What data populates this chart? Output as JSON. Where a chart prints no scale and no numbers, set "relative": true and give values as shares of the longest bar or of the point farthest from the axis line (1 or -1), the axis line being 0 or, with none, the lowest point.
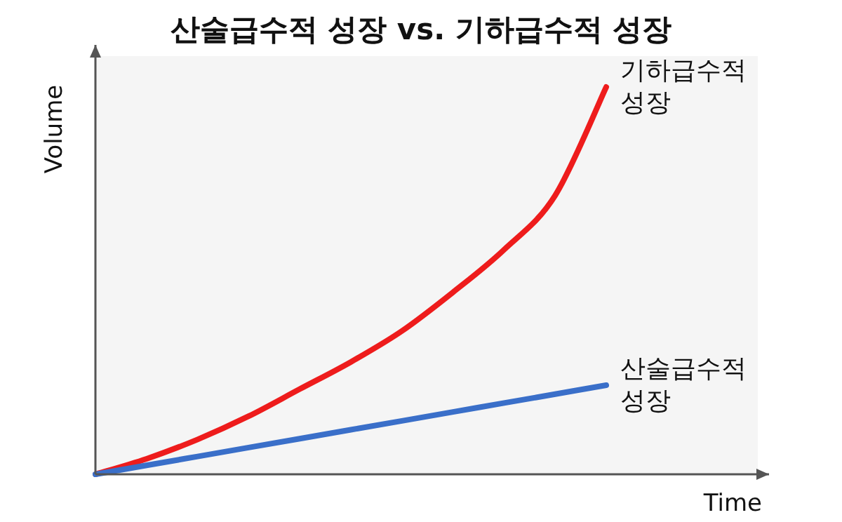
{
  "chart_data": {
    "type": "line",
    "title": "산술급수적 성장 vs. 기하급수적 성장",
    "xlabel": "Time",
    "ylabel": "Volume",
    "relative": true,
    "marker": "none",
    "line_style": "solid",
    "categories": [
      null,
      null,
      null,
      null,
      null,
      null,
      null,
      null,
      null,
      null,
      null
    ],
    "series": [
      {
        "name": "기하급수적 성장",
        "color": "#ee1c1c",
        "values": [
          0,
          0.04,
          0.09,
          0.15,
          0.22,
          0.29,
          0.37,
          0.47,
          0.58,
          0.72,
          1
        ]
      },
      {
        "name": "산술급수적 성장",
        "color": "#3a6fc9",
        "values": [
          0,
          0.023,
          0.046,
          0.069,
          0.092,
          0.115,
          0.138,
          0.161,
          0.184,
          0.207,
          0.23
        ]
      }
    ]
  }
}
